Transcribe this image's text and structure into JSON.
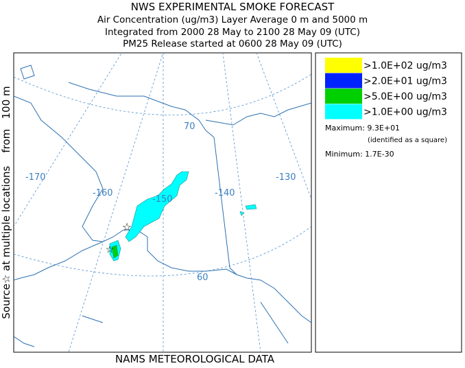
{
  "header": {
    "lines": [
      "NWS EXPERIMENTAL SMOKE FORECAST",
      "Air Concentration (ug/m3) Layer Average    0 m and  5000 m",
      "Integrated from 2000 28 May to 2100 28 May 09 (UTC)",
      "PM25 Release started at 0600 28 May 09 (UTC)"
    ]
  },
  "side_label": "Source☆ at multiple locations    from   100 m",
  "footer": "NAMS METEOROLOGICAL DATA",
  "legend": {
    "items": [
      {
        "label": ">1.0E+02 ug/m3",
        "color": "#ffff00"
      },
      {
        "label": ">2.0E+01 ug/m3",
        "color": "#0022ff"
      },
      {
        "label": ">5.0E+00 ug/m3",
        "color": "#00d000"
      },
      {
        "label": ">1.0E+00 ug/m3",
        "color": "#00ffff"
      }
    ]
  },
  "stats": {
    "maximum": "Maximum: 9.3E+01",
    "maximum_note": "(identified as a square)",
    "minimum": "Minimum: 1.7E-30"
  },
  "map": {
    "labels": [
      "-170",
      "-160",
      "-150",
      "-140",
      "-130",
      "70",
      "60"
    ]
  }
}
